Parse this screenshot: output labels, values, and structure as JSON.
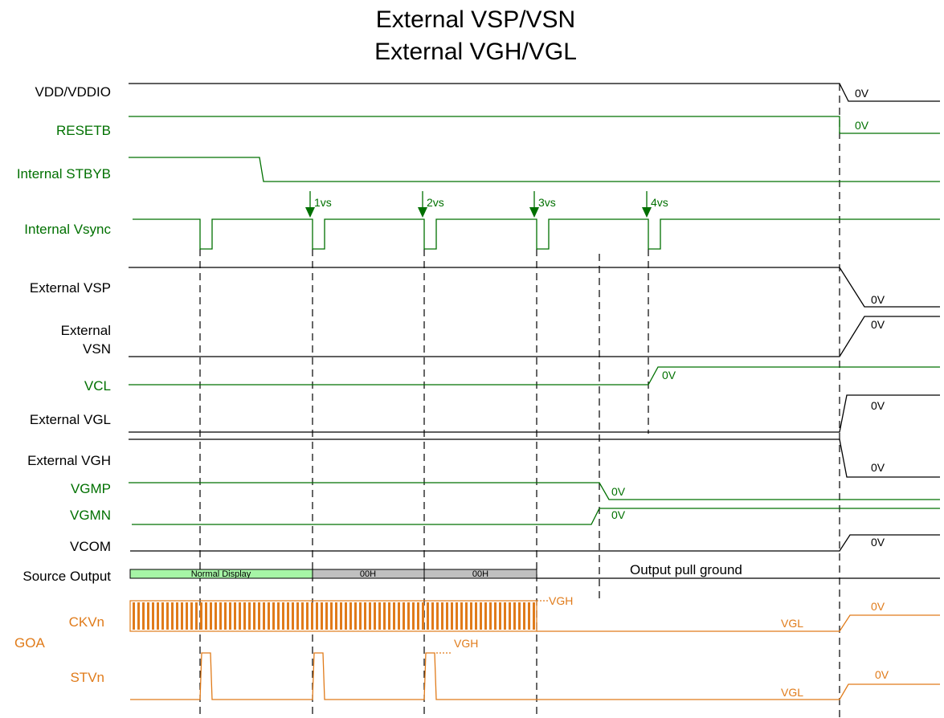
{
  "title": {
    "line1": "External VSP/VSN",
    "line2": "External VGH/VGL"
  },
  "signals": {
    "vdd": "VDD/VDDIO",
    "resetb": "RESETB",
    "stbyb": "Internal STBYB",
    "vsync": "Internal Vsync",
    "vsp": "External VSP",
    "vsn_1": "External",
    "vsn_2": "VSN",
    "vcl": "VCL",
    "vgl": "External VGL",
    "vgh": "External VGH",
    "vgmp": "VGMP",
    "vgmn": "VGMN",
    "vcom": "VCOM",
    "source": "Source Output",
    "ckvn": "CKVn",
    "goa": "GOA",
    "stvn": "STVn"
  },
  "annotations": {
    "vs1": "1vs",
    "vs2": "2vs",
    "vs3": "3vs",
    "vs4": "4vs",
    "zero_v": "0V",
    "normal_display": "Normal Display",
    "h00": "00H",
    "pull_ground": "Output pull ground",
    "vgh": "VGH",
    "vgl": "VGL"
  },
  "colors": {
    "black": "#000000",
    "green": "#007000",
    "orange": "#e07b1a",
    "normal_display_fill": "#a6f5a6",
    "gray_fill": "#c0c0c0"
  }
}
